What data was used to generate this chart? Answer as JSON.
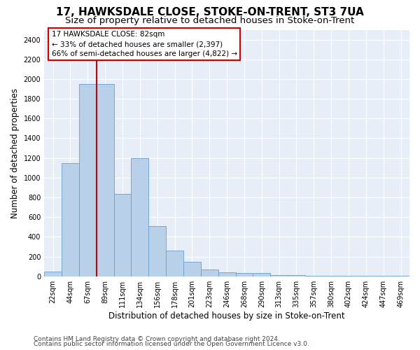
{
  "title": "17, HAWKSDALE CLOSE, STOKE-ON-TRENT, ST3 7UA",
  "subtitle": "Size of property relative to detached houses in Stoke-on-Trent",
  "xlabel": "Distribution of detached houses by size in Stoke-on-Trent",
  "ylabel": "Number of detached properties",
  "categories": [
    "22sqm",
    "44sqm",
    "67sqm",
    "89sqm",
    "111sqm",
    "134sqm",
    "156sqm",
    "178sqm",
    "201sqm",
    "223sqm",
    "246sqm",
    "268sqm",
    "290sqm",
    "313sqm",
    "335sqm",
    "357sqm",
    "380sqm",
    "402sqm",
    "424sqm",
    "447sqm",
    "469sqm"
  ],
  "values": [
    50,
    1150,
    1950,
    1950,
    835,
    1200,
    510,
    260,
    150,
    70,
    40,
    35,
    30,
    10,
    10,
    5,
    2,
    2,
    2,
    2,
    2
  ],
  "bar_color": "#b8d0e8",
  "bar_edge_color": "#6a9fd0",
  "vline_color": "#cc0000",
  "annotation_text": "17 HAWKSDALE CLOSE: 82sqm\n← 33% of detached houses are smaller (2,397)\n66% of semi-detached houses are larger (4,822) →",
  "annotation_box_color": "#ffffff",
  "annotation_box_edge": "#cc0000",
  "ylim": [
    0,
    2500
  ],
  "yticks": [
    0,
    200,
    400,
    600,
    800,
    1000,
    1200,
    1400,
    1600,
    1800,
    2000,
    2200,
    2400
  ],
  "footer_line1": "Contains HM Land Registry data © Crown copyright and database right 2024.",
  "footer_line2": "Contains public sector information licensed under the Open Government Licence v3.0.",
  "bg_color": "#e8eef8",
  "grid_color": "#ffffff",
  "title_fontsize": 11,
  "subtitle_fontsize": 9.5,
  "label_fontsize": 8.5,
  "tick_fontsize": 7,
  "footer_fontsize": 6.5,
  "vline_bar_index": 3
}
